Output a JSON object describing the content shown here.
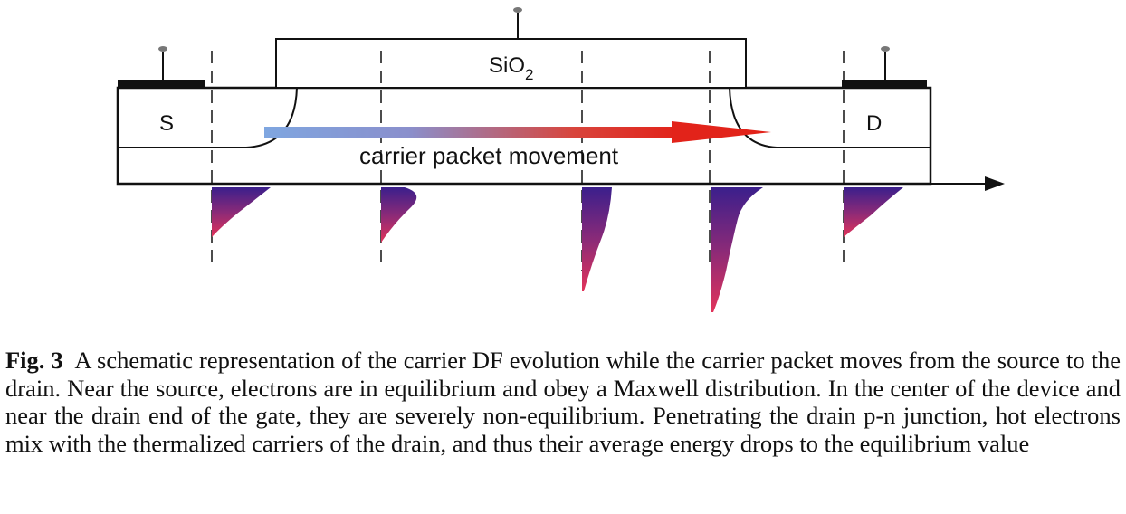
{
  "diagram": {
    "oxide_label": "SiO",
    "oxide_subscript": "2",
    "source_label": "S",
    "drain_label": "D",
    "arrow_label": "carrier packet movement",
    "colors": {
      "line": "#111111",
      "arrow_start": "#7fa6e0",
      "arrow_end": "#e2231a",
      "df_top": "#3b1f8c",
      "df_bottom": "#e2335a"
    }
  },
  "caption": {
    "label": "Fig. 3",
    "text": "A schematic representation of the carrier DF evolution while the carrier packet moves from the source to the drain. Near the source, electrons are in equilibrium and obey a Maxwell distribution. In the center of the device and near the drain end of the gate, they are severely non-equilibrium. Penetrating the drain p-n junction, hot electrons mix with the thermalized carriers of the drain, and thus their average energy drops to the equilibrium value"
  }
}
